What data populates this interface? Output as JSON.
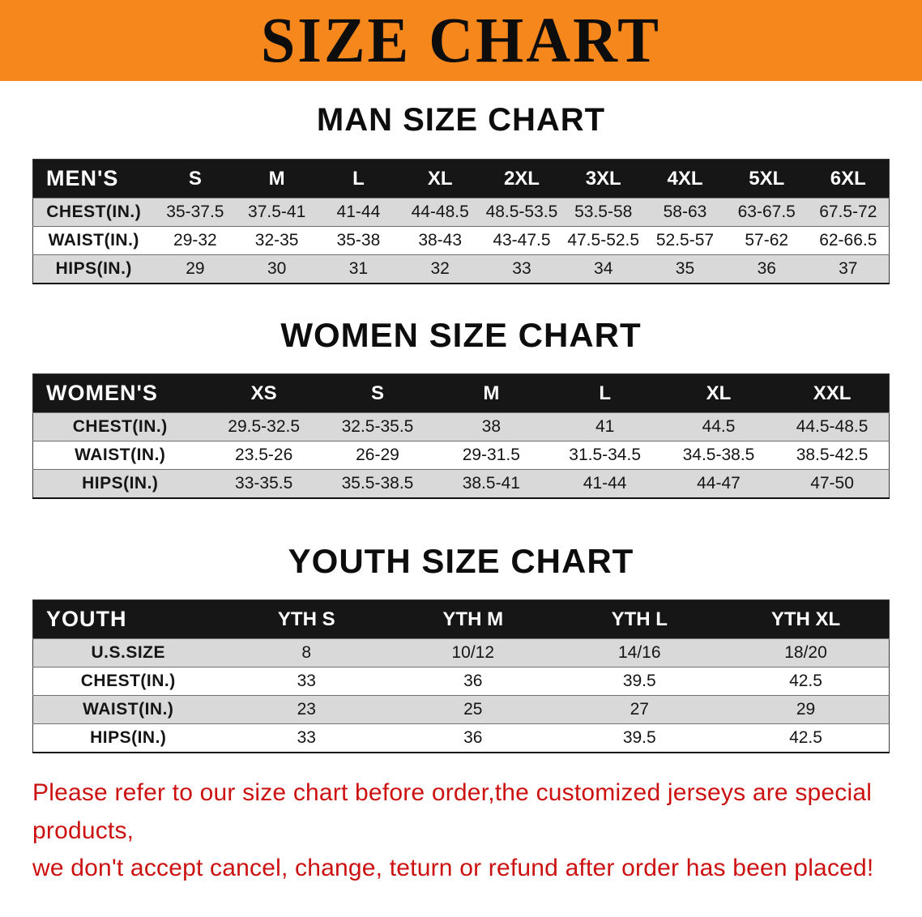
{
  "banner": {
    "title": "SIZE CHART"
  },
  "colors": {
    "banner_bg": "#f6871d",
    "header_row_bg": "#161616",
    "row_alt_bg": "#d9d9d9",
    "footer_text": "#cc1111"
  },
  "footer": {
    "line1": "Please refer to our size chart before order,the customized jerseys are special products,",
    "line2": "we don't accept cancel, change, teturn or refund after order has been placed!"
  },
  "chart_data": [
    {
      "type": "table",
      "title": "MAN SIZE CHART",
      "columns": [
        "MEN'S",
        "S",
        "M",
        "L",
        "XL",
        "2XL",
        "3XL",
        "4XL",
        "5XL",
        "6XL"
      ],
      "rows": [
        [
          "CHEST(IN.)",
          "35-37.5",
          "37.5-41",
          "41-44",
          "44-48.5",
          "48.5-53.5",
          "53.5-58",
          "58-63",
          "63-67.5",
          "67.5-72"
        ],
        [
          "WAIST(IN.)",
          "29-32",
          "32-35",
          "35-38",
          "38-43",
          "43-47.5",
          "47.5-52.5",
          "52.5-57",
          "57-62",
          "62-66.5"
        ],
        [
          "HIPS(IN.)",
          "29",
          "30",
          "31",
          "32",
          "33",
          "34",
          "35",
          "36",
          "37"
        ]
      ]
    },
    {
      "type": "table",
      "title": "WOMEN SIZE CHART",
      "columns": [
        "WOMEN'S",
        "XS",
        "S",
        "M",
        "L",
        "XL",
        "XXL"
      ],
      "rows": [
        [
          "CHEST(IN.)",
          "29.5-32.5",
          "32.5-35.5",
          "38",
          "41",
          "44.5",
          "44.5-48.5"
        ],
        [
          "WAIST(IN.)",
          "23.5-26",
          "26-29",
          "29-31.5",
          "31.5-34.5",
          "34.5-38.5",
          "38.5-42.5"
        ],
        [
          "HIPS(IN.)",
          "33-35.5",
          "35.5-38.5",
          "38.5-41",
          "41-44",
          "44-47",
          "47-50"
        ]
      ]
    },
    {
      "type": "table",
      "title": "YOUTH SIZE CHART",
      "columns": [
        "YOUTH",
        "YTH S",
        "YTH M",
        "YTH L",
        "YTH XL"
      ],
      "rows": [
        [
          "U.S.SIZE",
          "8",
          "10/12",
          "14/16",
          "18/20"
        ],
        [
          "CHEST(IN.)",
          "33",
          "36",
          "39.5",
          "42.5"
        ],
        [
          "WAIST(IN.)",
          "23",
          "25",
          "27",
          "29"
        ],
        [
          "HIPS(IN.)",
          "33",
          "36",
          "39.5",
          "42.5"
        ]
      ]
    }
  ]
}
